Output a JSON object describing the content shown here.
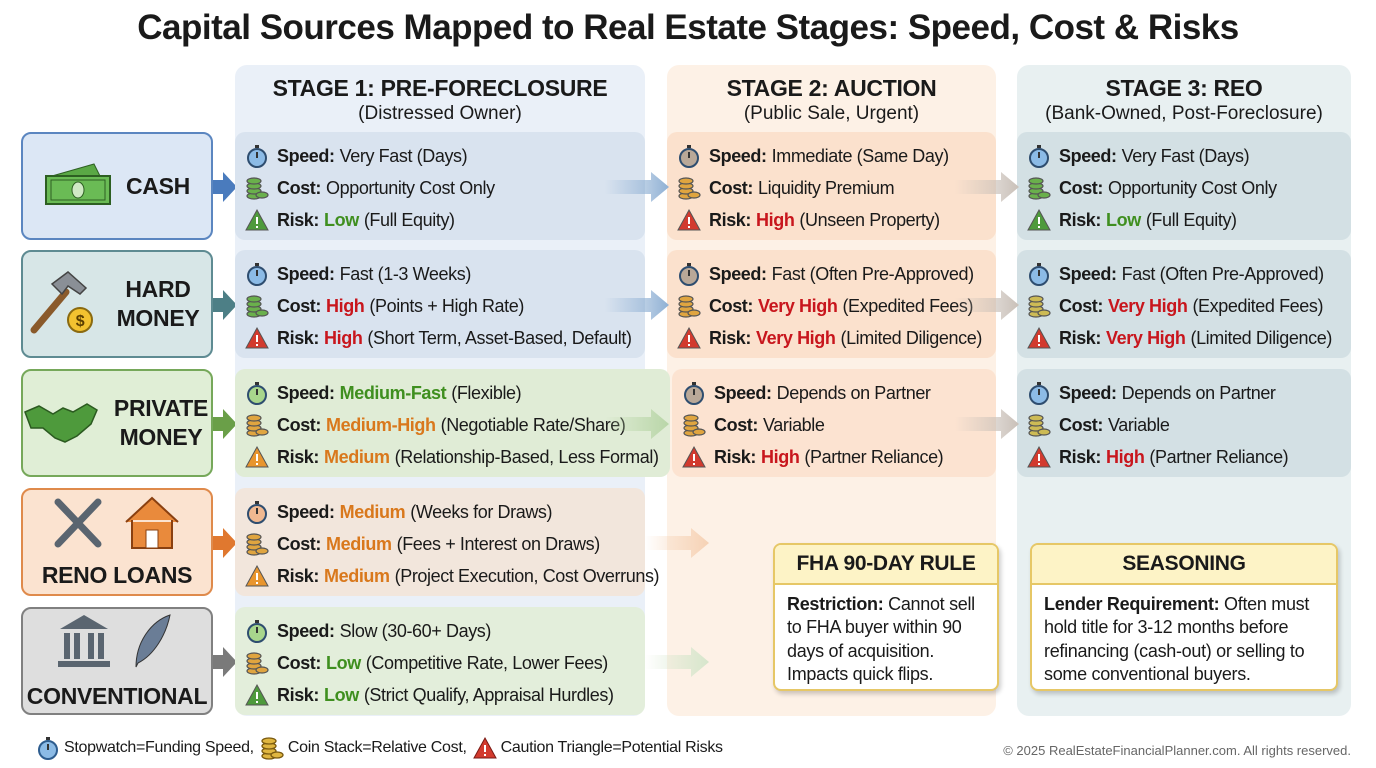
{
  "title": "Capital Sources Mapped to Real Estate Stages: Speed, Cost & Risks",
  "stages": [
    {
      "title": "STAGE 1: PRE-FORECLOSURE",
      "subtitle": "(Distressed Owner)",
      "bg": "#eaf0f8"
    },
    {
      "title": "STAGE 2: AUCTION",
      "subtitle": "(Public Sale, Urgent)",
      "bg": "#fdf1e6"
    },
    {
      "title": "STAGE 3: REO",
      "subtitle": "(Bank-Owned, Post-Foreclosure)",
      "bg": "#e8f0f1"
    }
  ],
  "sources": [
    {
      "label": "CASH",
      "icon": "cash-icon",
      "bg": "#dce7f5",
      "border": "#5b86c0",
      "arrow": "#4a7bbd"
    },
    {
      "label": "HARD MONEY",
      "icon": "hammer-icon",
      "bg": "#d7e6e7",
      "border": "#5e8b92",
      "arrow": "#4d7f86"
    },
    {
      "label": "PRIVATE MONEY",
      "icon": "handshake-icon",
      "bg": "#e0eed6",
      "border": "#76a85a",
      "arrow": "#6a9f48"
    },
    {
      "label": "RENO LOANS",
      "icon": "tools-house-icon",
      "bg": "#fbe3d0",
      "border": "#df8a4b",
      "arrow": "#e0782f"
    },
    {
      "label": "CONVENTIONAL",
      "icon": "bank-quill-icon",
      "bg": "#dedede",
      "border": "#808080",
      "arrow": "#7a7a7a"
    }
  ],
  "labels": {
    "speed": "Speed:",
    "cost": "Cost:",
    "risk": "Risk:"
  },
  "rows": [
    [
      {
        "bg": "#d9e3ef",
        "speed": [
          "",
          "Very Fast (Days)",
          ""
        ],
        "cost": [
          "",
          "Opportunity Cost Only",
          ""
        ],
        "risk": [
          "Low",
          "(Full Equity)",
          "green"
        ]
      },
      {
        "bg": "#fbe1cd",
        "speed": [
          "",
          "Immediate (Same Day)",
          ""
        ],
        "cost": [
          "",
          "Liquidity Premium",
          ""
        ],
        "risk": [
          "High",
          "(Unseen Property)",
          "red"
        ]
      },
      {
        "bg": "#d3e0e4",
        "speed": [
          "",
          "Very Fast (Days)",
          ""
        ],
        "cost": [
          "",
          "Opportunity Cost Only",
          ""
        ],
        "risk": [
          "Low",
          "(Full Equity)",
          "green"
        ]
      }
    ],
    [
      {
        "bg": "#d9e3ef",
        "speed": [
          "",
          "Fast (1-3 Weeks)",
          ""
        ],
        "cost": [
          "High",
          "(Points + High Rate)",
          "red"
        ],
        "risk": [
          "High",
          "(Short Term, Asset-Based, Default)",
          "red"
        ]
      },
      {
        "bg": "#fbe1cd",
        "speed": [
          "",
          "Fast (Often Pre-Approved)",
          ""
        ],
        "cost": [
          "Very High",
          "(Expedited Fees)",
          "red"
        ],
        "risk": [
          "Very High",
          "(Limited Diligence)",
          "red"
        ]
      },
      {
        "bg": "#d3e0e4",
        "speed": [
          "",
          "Fast (Often Pre-Approved)",
          ""
        ],
        "cost": [
          "Very High",
          "(Expedited Fees)",
          "red"
        ],
        "risk": [
          "Very High",
          "(Limited Diligence)",
          "red"
        ]
      }
    ],
    [
      {
        "bg": "#e0ecd6",
        "speed": [
          "Medium-Fast",
          "(Flexible)",
          "green"
        ],
        "cost": [
          "Medium-High",
          "(Negotiable Rate/Share)",
          "orange"
        ],
        "risk": [
          "Medium",
          "(Relationship-Based, Less Formal)",
          "orange"
        ]
      },
      {
        "bg": "#fbe1cd",
        "speed": [
          "",
          "Depends on Partner",
          ""
        ],
        "cost": [
          "",
          "Variable",
          ""
        ],
        "risk": [
          "High",
          "(Partner Reliance)",
          "red"
        ]
      },
      {
        "bg": "#d3e0e4",
        "speed": [
          "",
          "Depends on Partner",
          ""
        ],
        "cost": [
          "",
          "Variable",
          ""
        ],
        "risk": [
          "High",
          "(Partner Reliance)",
          "red"
        ]
      }
    ],
    [
      {
        "bg": "#f2e6dc",
        "speed": [
          "Medium",
          "(Weeks for Draws)",
          "orange"
        ],
        "cost": [
          "Medium",
          "(Fees + Interest on Draws)",
          "orange"
        ],
        "risk": [
          "Medium",
          "(Project Execution, Cost Overruns)",
          "orange"
        ]
      }
    ],
    [
      {
        "bg": "#e3eedb",
        "speed": [
          "",
          "Slow (30-60+ Days)",
          ""
        ],
        "cost": [
          "Low",
          "(Competitive Rate, Lower Fees)",
          "green"
        ],
        "risk": [
          "Low",
          "(Strict Qualify, Appraisal Hurdles)",
          "green"
        ]
      }
    ]
  ],
  "notes": [
    {
      "title": "FHA 90-DAY RULE",
      "label": "Restriction:",
      "text": "Cannot sell to FHA buyer within 90 days of acquisition. Impacts quick flips."
    },
    {
      "title": "SEASONING",
      "label": "Lender Requirement:",
      "text": "Often must hold title for 3-12 months before refinancing (cash-out) or selling to some conventional buyers."
    }
  ],
  "legend": [
    "Stopwatch=Funding Speed,",
    "Coin Stack=Relative Cost,",
    "Caution Triangle=Potential Risks"
  ],
  "copyright": "© 2025 RealEstateFinancialPlanner.com. All rights reserved."
}
